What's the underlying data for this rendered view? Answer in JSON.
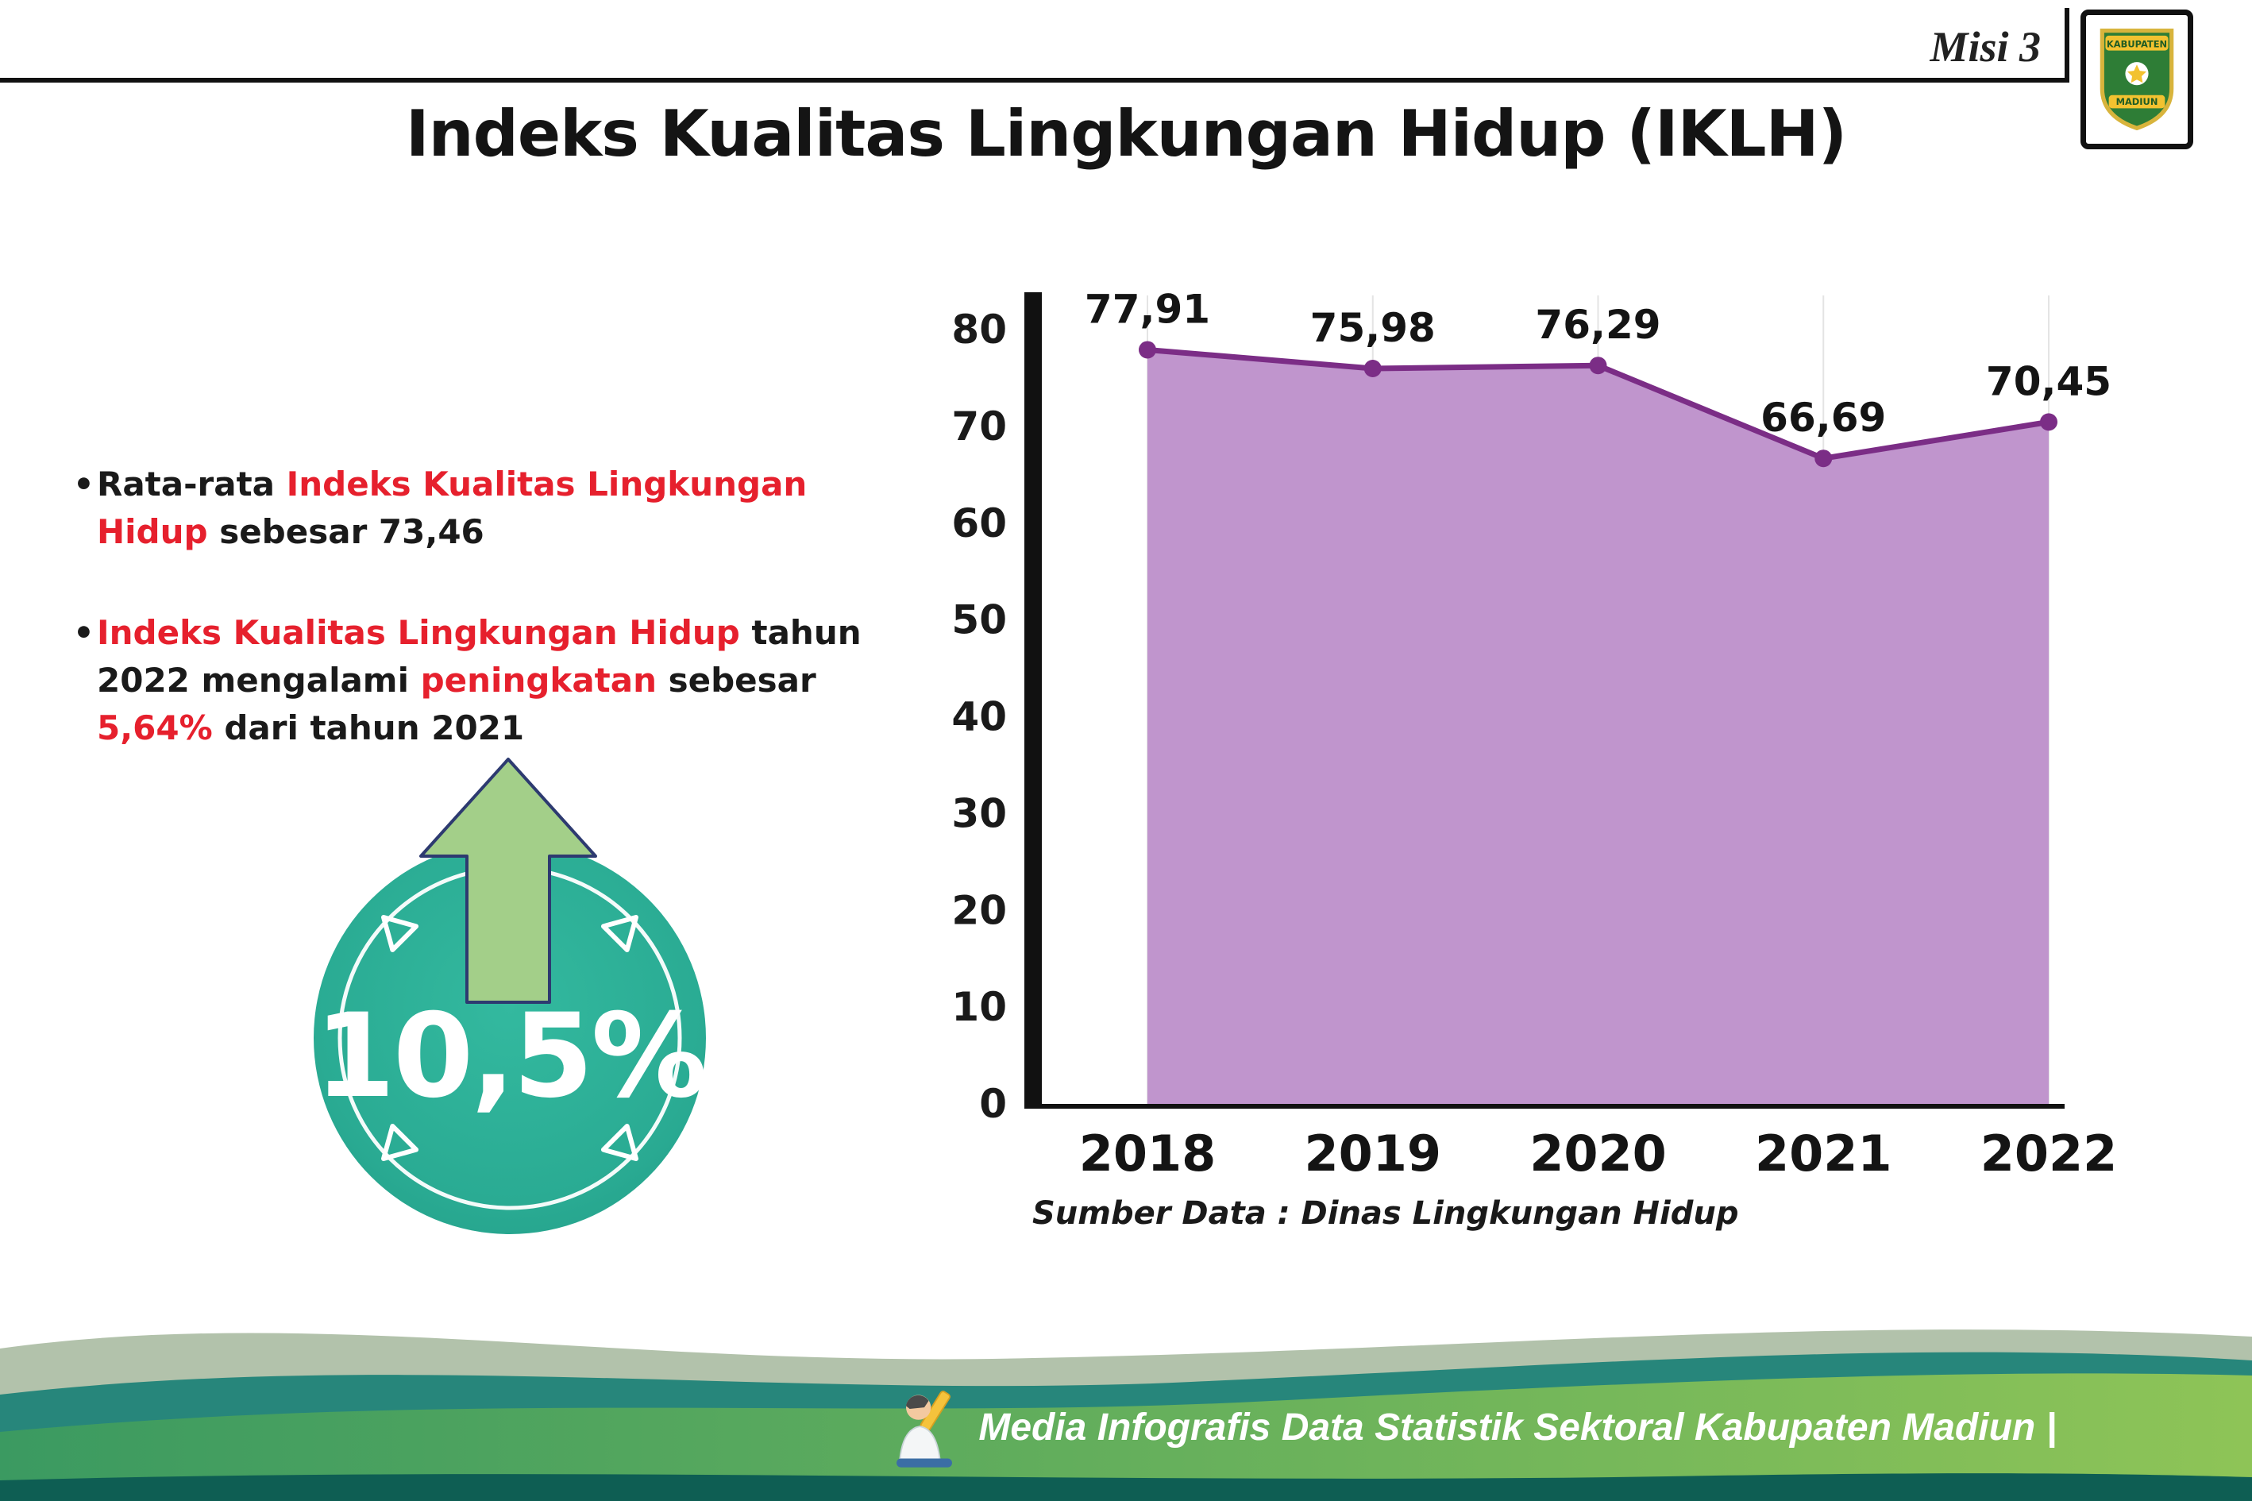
{
  "page": {
    "misi_label": "Misi 3",
    "title": "Indeks Kualitas Lingkungan Hidup (IKLH)",
    "logo": {
      "top_text": "KABUPATEN",
      "bottom_text": "MADIUN"
    }
  },
  "bullets": {
    "marker": "•",
    "bullet1": {
      "seg1": "Rata-rata ",
      "seg2": "Indeks Kualitas Lingkungan Hidup",
      "seg3": " sebesar 73,46"
    },
    "bullet2": {
      "seg1": "Indeks Kualitas Lingkungan Hidup",
      "seg2": " tahun 2022 mengalami ",
      "seg3": "peningkatan",
      "seg4": " sebesar ",
      "seg5": "5,64%",
      "seg6": " dari tahun 2021"
    }
  },
  "badge": {
    "value": "10,5%"
  },
  "chart_data": {
    "type": "area",
    "categories": [
      "2018",
      "2019",
      "2020",
      "2021",
      "2022"
    ],
    "values": [
      77.91,
      75.98,
      76.29,
      66.69,
      70.45
    ],
    "value_labels": [
      "77,91",
      "75,98",
      "76,29",
      "66,69",
      "70,45"
    ],
    "title": "",
    "xlabel": "",
    "ylabel": "",
    "ylim": [
      0,
      80
    ],
    "yticks": [
      0,
      10,
      20,
      30,
      40,
      50,
      60,
      70,
      80
    ],
    "grid": "vertical-light",
    "legend": "none",
    "colors": {
      "fill": "#c095cd",
      "line": "#7b2d86",
      "point": "#7b2d86",
      "axis": "#111111",
      "grid": "#e4e4e4"
    }
  },
  "source_note": "Sumber Data : Dinas Lingkungan Hidup",
  "footer": {
    "text": "Media Infografis Data Statistik Sektoral Kabupaten Madiun |"
  },
  "colors": {
    "accent_red": "#e6202d",
    "badge_teal": "#2aab93",
    "arrow_green": "#a3cf89",
    "footer_sage": "#b2c2ab",
    "footer_teal": "#27867b",
    "footer_green_dark": "#3b9a61",
    "footer_green_light": "#8ec457",
    "footer_bottom_strip": "#0e5e53"
  }
}
